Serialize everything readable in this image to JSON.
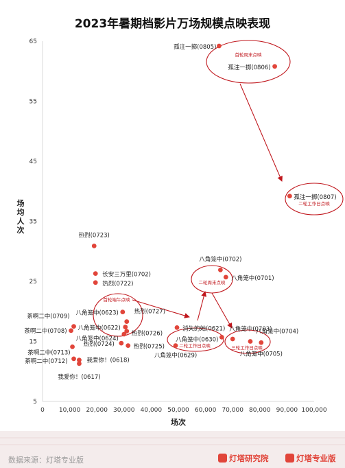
{
  "chart_data": {
    "type": "scatter",
    "title": "2023年暑期档影片万场规模点映表现",
    "xlabel": "场次",
    "ylabel": "场均人次",
    "xlim": [
      0,
      100000
    ],
    "ylim": [
      5,
      65
    ],
    "xticks": [
      "0",
      "10,000",
      "20,000",
      "30,000",
      "40,000",
      "50,000",
      "60,000",
      "70,000",
      "80,000",
      "90,000",
      "100,000"
    ],
    "yticks": [
      "5",
      "15",
      "25",
      "35",
      "45",
      "55",
      "65"
    ],
    "grid": false,
    "point_color": "#e1453a",
    "annotation_color": "#c0171d",
    "points": [
      {
        "label": "孤注一掷(0805)",
        "x": 65000,
        "y": 64.2
      },
      {
        "label": "孤注一掷(0806)",
        "x": 85500,
        "y": 60.8
      },
      {
        "label": "孤注一掷(0807)",
        "x": 91000,
        "y": 39.2
      },
      {
        "label": "热烈(0723)",
        "x": 19000,
        "y": 30.9
      },
      {
        "label": "长安三万里(0702)",
        "x": 19500,
        "y": 26.3
      },
      {
        "label": "热烈(0722)",
        "x": 19500,
        "y": 24.8
      },
      {
        "label": "八角笼中(0702)",
        "x": 65500,
        "y": 26.9
      },
      {
        "label": "八角笼中(0701)",
        "x": 67500,
        "y": 25.7
      },
      {
        "label": "八角笼中(0623)",
        "x": 29500,
        "y": 19.9
      },
      {
        "label": "热烈(0727)",
        "x": 31000,
        "y": 18.3
      },
      {
        "label": "茶啊二中(0709)",
        "x": 11500,
        "y": 17.5
      },
      {
        "label": "八角笼中(0622)",
        "x": 30500,
        "y": 17.4
      },
      {
        "label": "茶啊二中(0708)",
        "x": 10500,
        "y": 16.8
      },
      {
        "label": "热烈(0726)",
        "x": 31000,
        "y": 16.7
      },
      {
        "label": "八角笼中(0624)",
        "x": 30000,
        "y": 16.2
      },
      {
        "label": "消失的她(0621)",
        "x": 49500,
        "y": 17.3
      },
      {
        "label": "八角笼中(0630)",
        "x": 66000,
        "y": 15.7
      },
      {
        "label": "八角笼中(0703)",
        "x": 70000,
        "y": 15.4
      },
      {
        "label": "八角笼中(0704)",
        "x": 76500,
        "y": 15.0
      },
      {
        "label": "八角笼中(0705)",
        "x": 80500,
        "y": 14.8
      },
      {
        "label": "茶啊二中(0713)",
        "x": 11000,
        "y": 14.1
      },
      {
        "label": "热烈(0724)",
        "x": 29000,
        "y": 14.7
      },
      {
        "label": "热烈(0725)",
        "x": 31500,
        "y": 14.3
      },
      {
        "label": "八角笼中(0629)",
        "x": 49000,
        "y": 14.3
      },
      {
        "label": "茶啊二中(0712)",
        "x": 11500,
        "y": 12.1
      },
      {
        "label": "我爱你！(0618)",
        "x": 13500,
        "y": 11.9
      },
      {
        "label": "我爱你！(0617)",
        "x": 13500,
        "y": 11.3
      }
    ],
    "annotations": [
      "首轮周末点映",
      "二轮工作日点映",
      "首轮端午点映",
      "二轮周末点映",
      "二轮工作日点映",
      "三轮工作日点映"
    ]
  },
  "footer": {
    "source": "数据来源：灯塔专业版",
    "brand_research": "灯塔研究院",
    "brand_pro": "灯塔专业版"
  }
}
